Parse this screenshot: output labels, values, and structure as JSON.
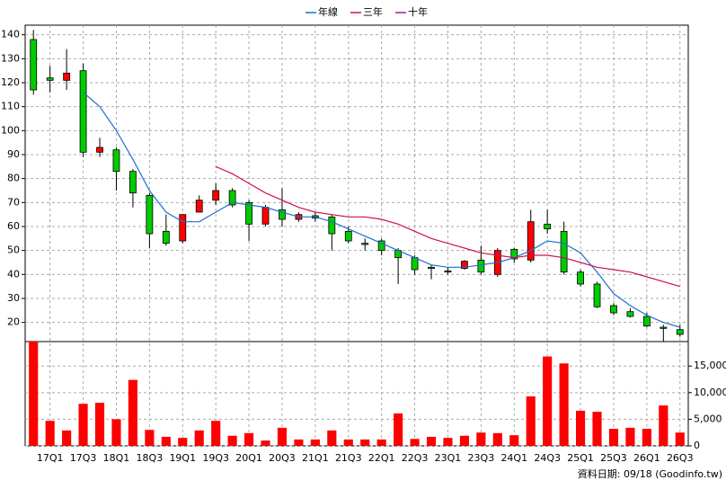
{
  "chart_data": {
    "type": "candlestick",
    "categories": [
      null,
      "17Q1",
      null,
      "17Q3",
      null,
      "18Q1",
      null,
      "18Q3",
      null,
      "19Q1",
      null,
      "19Q3",
      null,
      "20Q1",
      null,
      "20Q3",
      null,
      "21Q1",
      null,
      "21Q3",
      null,
      "22Q1",
      null,
      "22Q3",
      null,
      "23Q1",
      null,
      "23Q3",
      null,
      "24Q1",
      null,
      "24Q3",
      null,
      "25Q1",
      null,
      "25Q3",
      null,
      "26Q1",
      null,
      "26Q3"
    ],
    "open": [
      138,
      122,
      121,
      125,
      91,
      92,
      83,
      73,
      58,
      54,
      66,
      71,
      75,
      70,
      61,
      67,
      63,
      64.5,
      64,
      58,
      53,
      54,
      50,
      47,
      43,
      41.5,
      42.5,
      46,
      40,
      50.5,
      46,
      61,
      58,
      41,
      36,
      27,
      24.5,
      22.5,
      18,
      17
    ],
    "high": [
      142,
      127,
      134,
      128,
      97,
      93,
      84,
      74,
      65,
      65,
      73,
      78,
      76,
      71,
      69,
      76,
      66,
      66,
      65,
      60,
      55,
      55,
      51,
      48,
      44,
      43,
      46,
      52,
      51,
      51,
      67,
      67,
      62,
      42,
      37,
      28,
      26,
      24,
      19,
      19
    ],
    "low": [
      115,
      116,
      117,
      89,
      89,
      75,
      68,
      51,
      52,
      53,
      66,
      69,
      68,
      54,
      60,
      60,
      62,
      62,
      50,
      53,
      50,
      48,
      36,
      40,
      38,
      40,
      42,
      40,
      39,
      45,
      45,
      57,
      40,
      35,
      26,
      23,
      22,
      18,
      12,
      14
    ],
    "close": [
      117,
      121,
      124,
      91,
      93,
      83,
      74,
      57,
      53,
      65,
      71,
      75,
      69,
      61,
      68,
      63,
      65,
      63.5,
      57,
      54,
      52.5,
      50,
      47,
      42,
      42.5,
      41,
      45.5,
      41,
      50,
      46.5,
      62,
      59,
      41,
      36,
      26.5,
      24,
      22.5,
      18.5,
      17.5,
      15
    ],
    "up_color": "#ff0000",
    "down_color": "#00cc00",
    "series": [
      {
        "name": "年線",
        "color": "#1f6fd0",
        "values": [
          null,
          null,
          null,
          116,
          110,
          100,
          88,
          75,
          66,
          62,
          62,
          66,
          70,
          69,
          68,
          66,
          64,
          64,
          62,
          59,
          56,
          53,
          50,
          47,
          44,
          43,
          43,
          44,
          45,
          47,
          50,
          54,
          53,
          49,
          41,
          32,
          27,
          23,
          20,
          18
        ]
      },
      {
        "name": "三年",
        "color": "#d0104a",
        "values": [
          null,
          null,
          null,
          null,
          null,
          null,
          null,
          null,
          null,
          null,
          null,
          85,
          82,
          78,
          74,
          71,
          68,
          66,
          65,
          64,
          64,
          63,
          61,
          58,
          55,
          53,
          51,
          49,
          48,
          47,
          48,
          48,
          47,
          45,
          43,
          42,
          41,
          39,
          37,
          35
        ]
      },
      {
        "name": "十年",
        "color": "#8a2a8a",
        "values": [
          null,
          null,
          null,
          null,
          null,
          null,
          null,
          null,
          null,
          null,
          null,
          null,
          null,
          null,
          null,
          null,
          null,
          null,
          null,
          null,
          null,
          null,
          null,
          null,
          null,
          null,
          null,
          null,
          null,
          null,
          null,
          null,
          null,
          null,
          null,
          null,
          null,
          null,
          null,
          null
        ]
      }
    ],
    "volume": {
      "color": "#ff0000",
      "axis": "y2",
      "values": [
        19600,
        4700,
        2900,
        7900,
        8100,
        5000,
        12400,
        3000,
        1700,
        1500,
        2900,
        4700,
        1900,
        2400,
        1000,
        3400,
        1200,
        1200,
        2900,
        1200,
        1200,
        1200,
        6100,
        1300,
        1700,
        1500,
        1900,
        2500,
        2400,
        2000,
        9300,
        16800,
        15500,
        6600,
        6400,
        3200,
        3400,
        3200,
        7600,
        2500
      ]
    },
    "ylim": [
      12,
      144
    ],
    "yticks": [
      20,
      30,
      40,
      50,
      60,
      70,
      80,
      90,
      100,
      110,
      120,
      130,
      140
    ],
    "y2lim": [
      0,
      19600
    ],
    "y2ticks": [
      0,
      {
        "value": 5000,
        "label": "5,000"
      },
      {
        "value": 10000,
        "label": "10,000"
      },
      {
        "value": 15000,
        "label": "15,000"
      }
    ],
    "grid": true,
    "footnote": "資料日期: 09/18 (Goodinfo.tw)"
  }
}
